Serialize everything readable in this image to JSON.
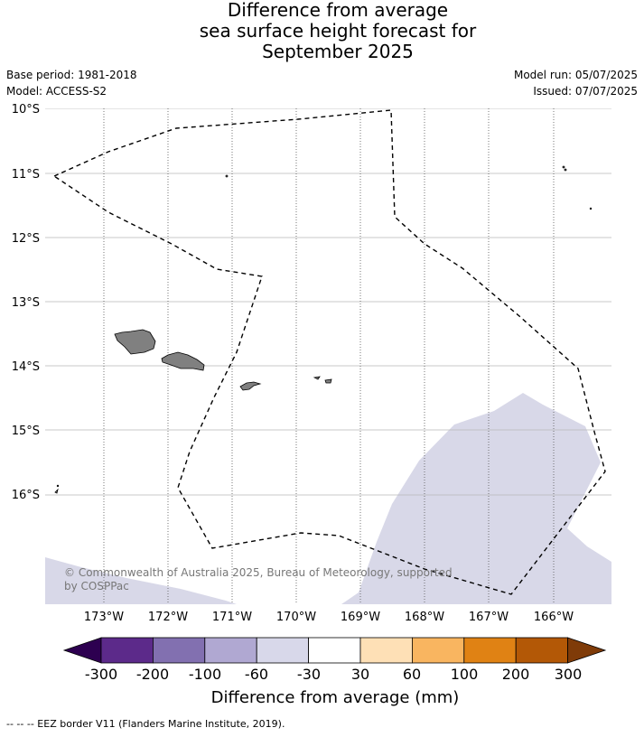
{
  "title": {
    "line1": "Difference from average",
    "line2": "sea surface height forecast for",
    "line3": "September 2025"
  },
  "meta": {
    "base_period": "Base period: 1981-2018",
    "model": "Model: ACCESS-S2",
    "model_run": "Model run: 05/07/2025",
    "issued": "Issued: 07/07/2025"
  },
  "map": {
    "lat_labels": [
      "10°S",
      "11°S",
      "12°S",
      "13°S",
      "14°S",
      "15°S",
      "16°S"
    ],
    "lon_labels": [
      "173°W",
      "172°W",
      "171°W",
      "170°W",
      "169°W",
      "168°W",
      "167°W",
      "166°W"
    ],
    "copyright_line1": "© Commonwealth of Australia 2025, Bureau of Meteorology, supported",
    "copyright_line2": "by COSPPac",
    "land_color": "#808080",
    "anomaly_fill_color": "#d8d8e8"
  },
  "colorbar": {
    "label": "Difference from average (mm)",
    "ticks": [
      "-300",
      "-200",
      "-100",
      "-60",
      "-30",
      "30",
      "60",
      "100",
      "200",
      "300"
    ],
    "colors": [
      "#5c2a8a",
      "#8270b0",
      "#b0a8d2",
      "#d8d8ea",
      "#ffffff",
      "#fee0b6",
      "#f9b560",
      "#e08214",
      "#b35806"
    ],
    "under_color": "#2d0050",
    "over_color": "#7f3b08"
  },
  "footnote": "-- -- -- EEZ border V11 (Flanders Marine Institute, 2019)."
}
